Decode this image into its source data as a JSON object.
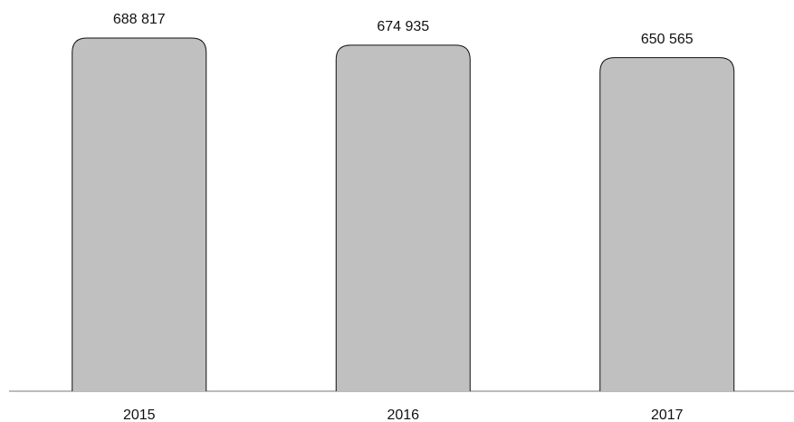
{
  "chart_data": {
    "type": "bar",
    "categories": [
      "2015",
      "2016",
      "2017"
    ],
    "values": [
      688817,
      674935,
      650565
    ],
    "value_labels": [
      "688 817",
      "674 935",
      "650 565"
    ],
    "color": "#c0c0c0"
  }
}
